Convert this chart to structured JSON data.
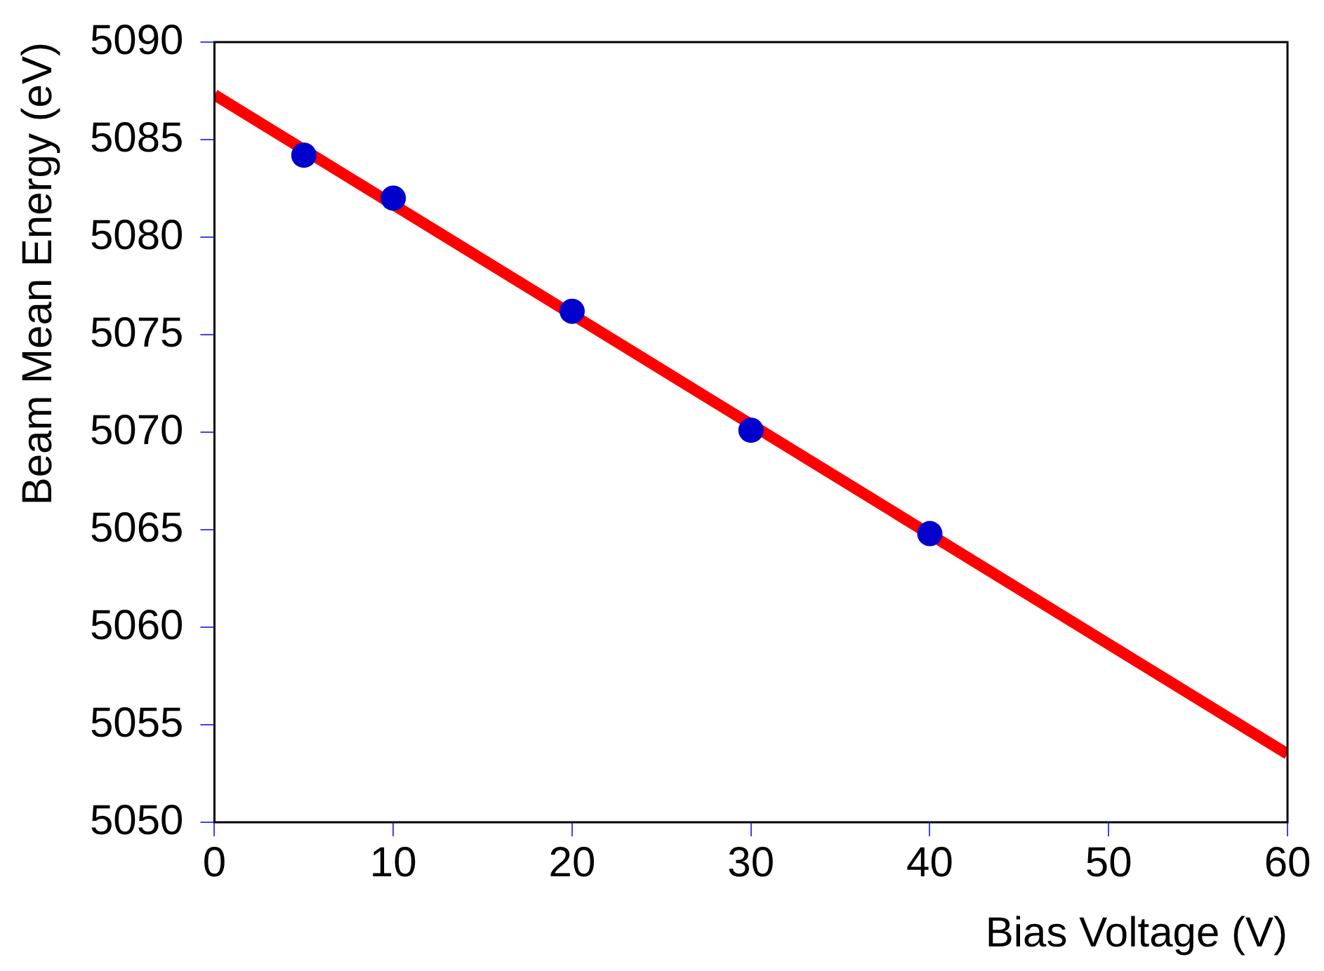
{
  "chart_data": {
    "type": "scatter",
    "xlabel": "Bias Voltage (V)",
    "ylabel": "Beam Mean Energy (eV)",
    "xlim": [
      0,
      60
    ],
    "xticks": [
      0,
      10,
      20,
      30,
      40,
      50,
      60
    ],
    "ylim": [
      5050,
      5090
    ],
    "yticks": [
      5050,
      5055,
      5060,
      5065,
      5070,
      5075,
      5080,
      5085,
      5090
    ],
    "grid": false,
    "legend": false,
    "marker": "circle",
    "series": [
      {
        "type": "line",
        "color": "#ff0000",
        "x": [
          0,
          60
        ],
        "values": [
          5087.3,
          5053.5
        ],
        "marker": "none"
      },
      {
        "color": "#0000cc",
        "x": [
          5,
          10,
          20,
          30,
          40
        ],
        "values": [
          5084.2,
          5082.0,
          5076.2,
          5070.1,
          5064.8
        ]
      }
    ]
  }
}
